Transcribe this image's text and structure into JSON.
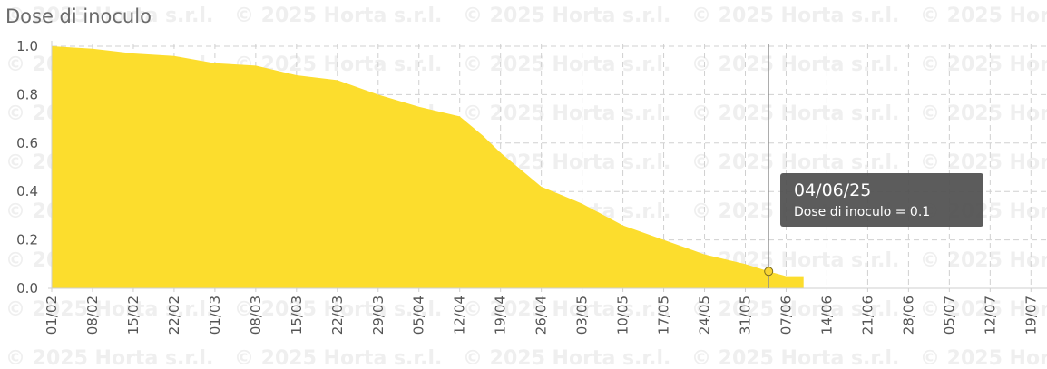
{
  "chart_data": {
    "type": "area",
    "title": "Dose di inoculo",
    "watermark": "© 2025 Horta s.r.l.",
    "xlabel": "",
    "ylabel": "",
    "ylim": [
      0,
      1
    ],
    "yticks": [
      "0.0",
      "0.2",
      "0.4",
      "0.6",
      "0.8",
      "1.0"
    ],
    "xticks": [
      "01/02",
      "08/02",
      "15/02",
      "22/02",
      "01/03",
      "08/03",
      "15/03",
      "22/03",
      "29/03",
      "05/04",
      "12/04",
      "19/04",
      "26/04",
      "03/05",
      "10/05",
      "17/05",
      "24/05",
      "31/05",
      "07/06",
      "14/06",
      "21/06",
      "28/06",
      "05/07",
      "12/07",
      "19/07"
    ],
    "grid": true,
    "fill_color": "#fcdd2d",
    "x": [
      "01/02",
      "08/02",
      "15/02",
      "22/02",
      "01/03",
      "08/03",
      "15/03",
      "22/03",
      "29/03",
      "05/04",
      "12/04",
      "16/04",
      "19/04",
      "22/04",
      "26/04",
      "03/05",
      "10/05",
      "17/05",
      "24/05",
      "31/05",
      "04/06",
      "07/06",
      "10/06"
    ],
    "series": [
      {
        "values": [
          1.0,
          0.99,
          0.97,
          0.96,
          0.93,
          0.92,
          0.88,
          0.86,
          0.8,
          0.75,
          0.71,
          0.63,
          0.56,
          0.5,
          0.42,
          0.35,
          0.26,
          0.2,
          0.14,
          0.1,
          0.07,
          0.05,
          0.05
        ]
      }
    ],
    "highlight": {
      "x": "04/06",
      "y": 0.07
    }
  },
  "tooltip": {
    "date": "04/06/25",
    "text": "Dose di inoculo = 0.1"
  }
}
